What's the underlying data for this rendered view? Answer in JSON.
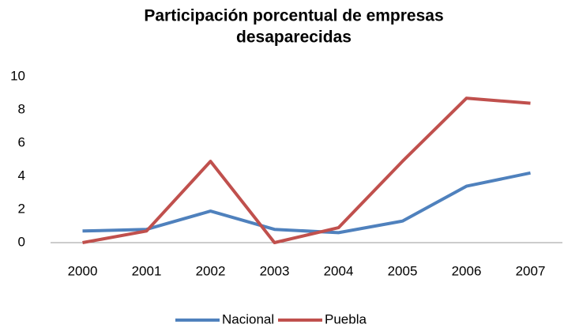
{
  "chart_data": {
    "type": "line",
    "title": [
      "Participación  porcentual de empresas",
      "desaparecidas"
    ],
    "categories": [
      "2000",
      "2001",
      "2002",
      "2003",
      "2004",
      "2005",
      "2006",
      "2007"
    ],
    "series": [
      {
        "name": "Nacional",
        "color": "#4f81bd",
        "values": [
          0.7,
          0.8,
          1.9,
          0.8,
          0.6,
          1.3,
          3.4,
          4.2
        ]
      },
      {
        "name": "Puebla",
        "color": "#c0504d",
        "values": [
          0,
          0.7,
          4.9,
          0,
          0.9,
          4.9,
          8.7,
          8.4
        ]
      }
    ],
    "ylim": [
      0,
      10
    ],
    "yticks": [
      0,
      2,
      4,
      6,
      8,
      10
    ],
    "grid": false,
    "legend": "bottom"
  }
}
